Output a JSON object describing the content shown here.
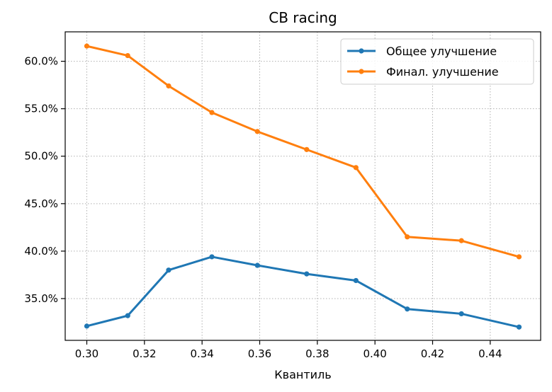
{
  "chart_data": {
    "type": "line",
    "title": "CB racing",
    "xlabel": "Квантиль",
    "ylabel": "",
    "xlim": [
      0.2925,
      0.4575
    ],
    "ylim": [
      30.6,
      63.1
    ],
    "x_ticks": [
      0.3,
      0.32,
      0.34,
      0.36,
      0.38,
      0.4,
      0.42,
      0.44
    ],
    "x_tick_labels": [
      "0.30",
      "0.32",
      "0.34",
      "0.36",
      "0.38",
      "0.40",
      "0.42",
      "0.44"
    ],
    "y_ticks": [
      35,
      40,
      45,
      50,
      55,
      60
    ],
    "y_tick_labels": [
      "35.0%",
      "40.0%",
      "45.0%",
      "50.0%",
      "55.0%",
      "60.0%"
    ],
    "grid": true,
    "legend_position": "top-right",
    "x": [
      0.3,
      0.3142,
      0.3284,
      0.3434,
      0.3592,
      0.3763,
      0.3934,
      0.4112,
      0.43,
      0.45
    ],
    "series": [
      {
        "name": "Общее улучшение",
        "color": "#1f77b4",
        "values": [
          32.1,
          33.2,
          38.0,
          39.4,
          38.5,
          37.6,
          36.9,
          33.9,
          33.4,
          32.0
        ]
      },
      {
        "name": "Финал. улучшение",
        "color": "#ff7f0e",
        "values": [
          61.6,
          60.6,
          57.4,
          54.6,
          52.6,
          50.7,
          48.8,
          41.5,
          41.1,
          39.4
        ]
      }
    ]
  }
}
